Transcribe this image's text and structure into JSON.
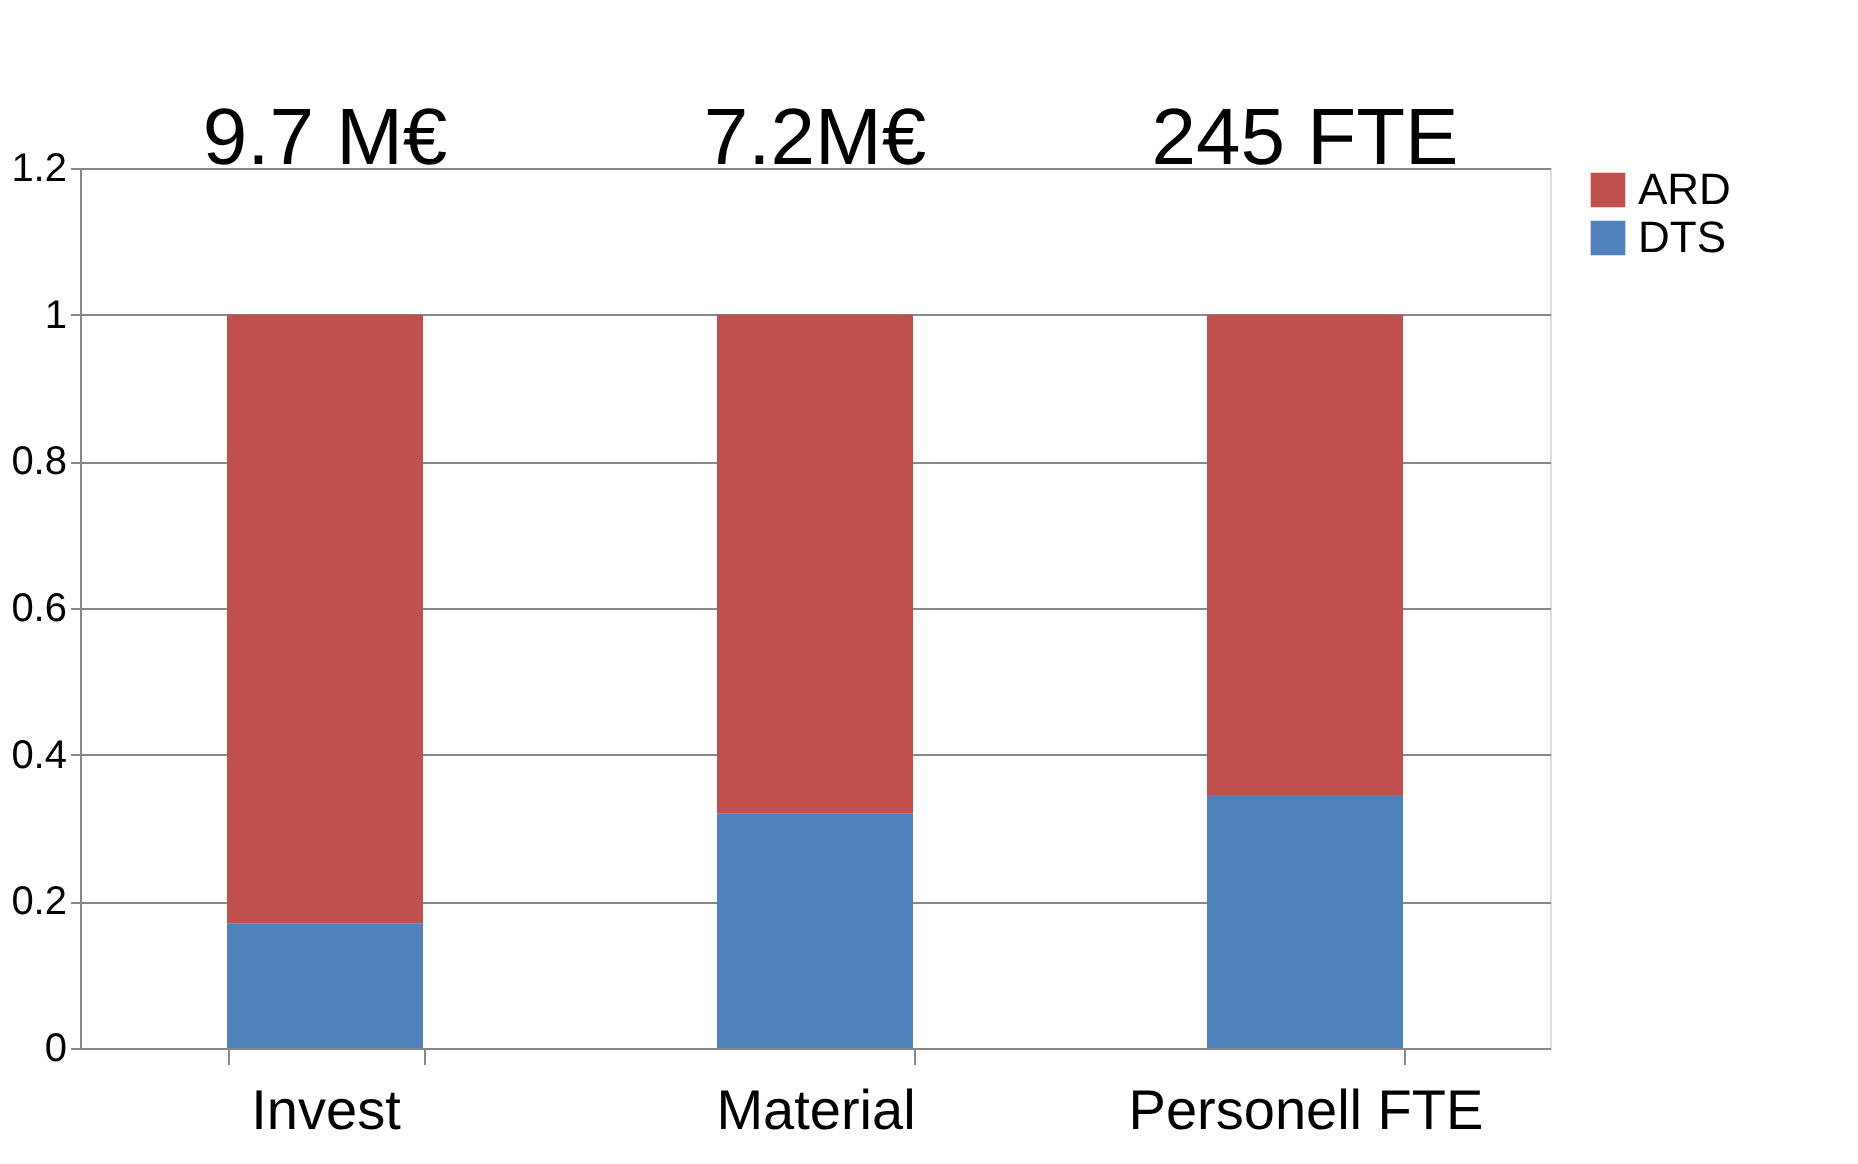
{
  "chart_data": {
    "type": "bar",
    "stacked": true,
    "categories": [
      "Invest",
      "Material",
      "Personell FTE"
    ],
    "series": [
      {
        "name": "DTS",
        "color": "#4f81bd",
        "values": [
          0.17,
          0.32,
          0.345
        ]
      },
      {
        "name": "ARD",
        "color": "#c0504d",
        "values": [
          0.83,
          0.68,
          0.655
        ]
      }
    ],
    "ylim": [
      0,
      1.2
    ],
    "yticks": [
      0,
      0.2,
      0.4,
      0.6,
      0.8,
      1,
      1.2
    ],
    "grid": "y",
    "legend": "right",
    "annotations": [
      "9.7 M€",
      "7.2M€",
      "245 FTE"
    ]
  }
}
